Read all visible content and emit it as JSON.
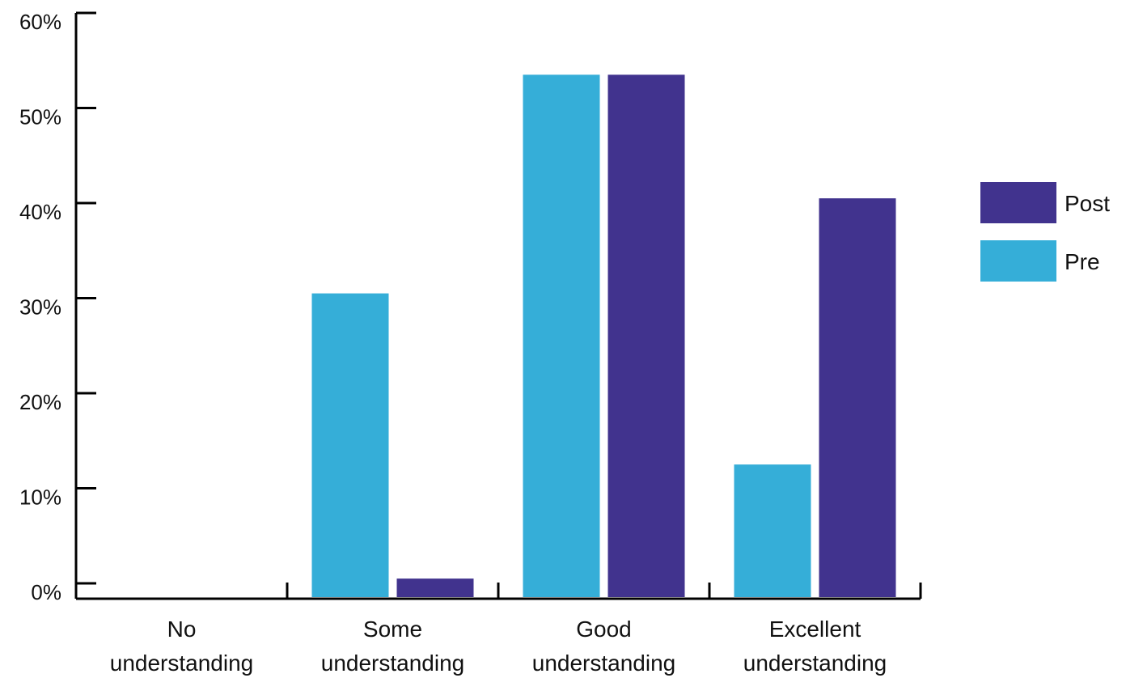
{
  "chart_data": {
    "type": "bar",
    "title": "",
    "xlabel": "",
    "ylabel": "",
    "ylim": [
      0,
      60
    ],
    "grid": false,
    "legend_position": "right",
    "y_ticks": [
      "0%",
      "10%",
      "20%",
      "30%",
      "40%",
      "50%",
      "60%"
    ],
    "categories": [
      [
        "No",
        "understanding"
      ],
      [
        "Some",
        "understanding"
      ],
      [
        "Good",
        "understanding"
      ],
      [
        "Excellent",
        "understanding"
      ]
    ],
    "series": [
      {
        "name": "Pre",
        "color": "#35AED8",
        "values": [
          0,
          30.5,
          53.5,
          12.5
        ]
      },
      {
        "name": "Post",
        "color": "#41338E",
        "values": [
          0,
          0.5,
          53.5,
          40.5
        ]
      }
    ],
    "legend": [
      {
        "name": "Post",
        "color": "#41338E"
      },
      {
        "name": "Pre",
        "color": "#35AED8"
      }
    ]
  }
}
